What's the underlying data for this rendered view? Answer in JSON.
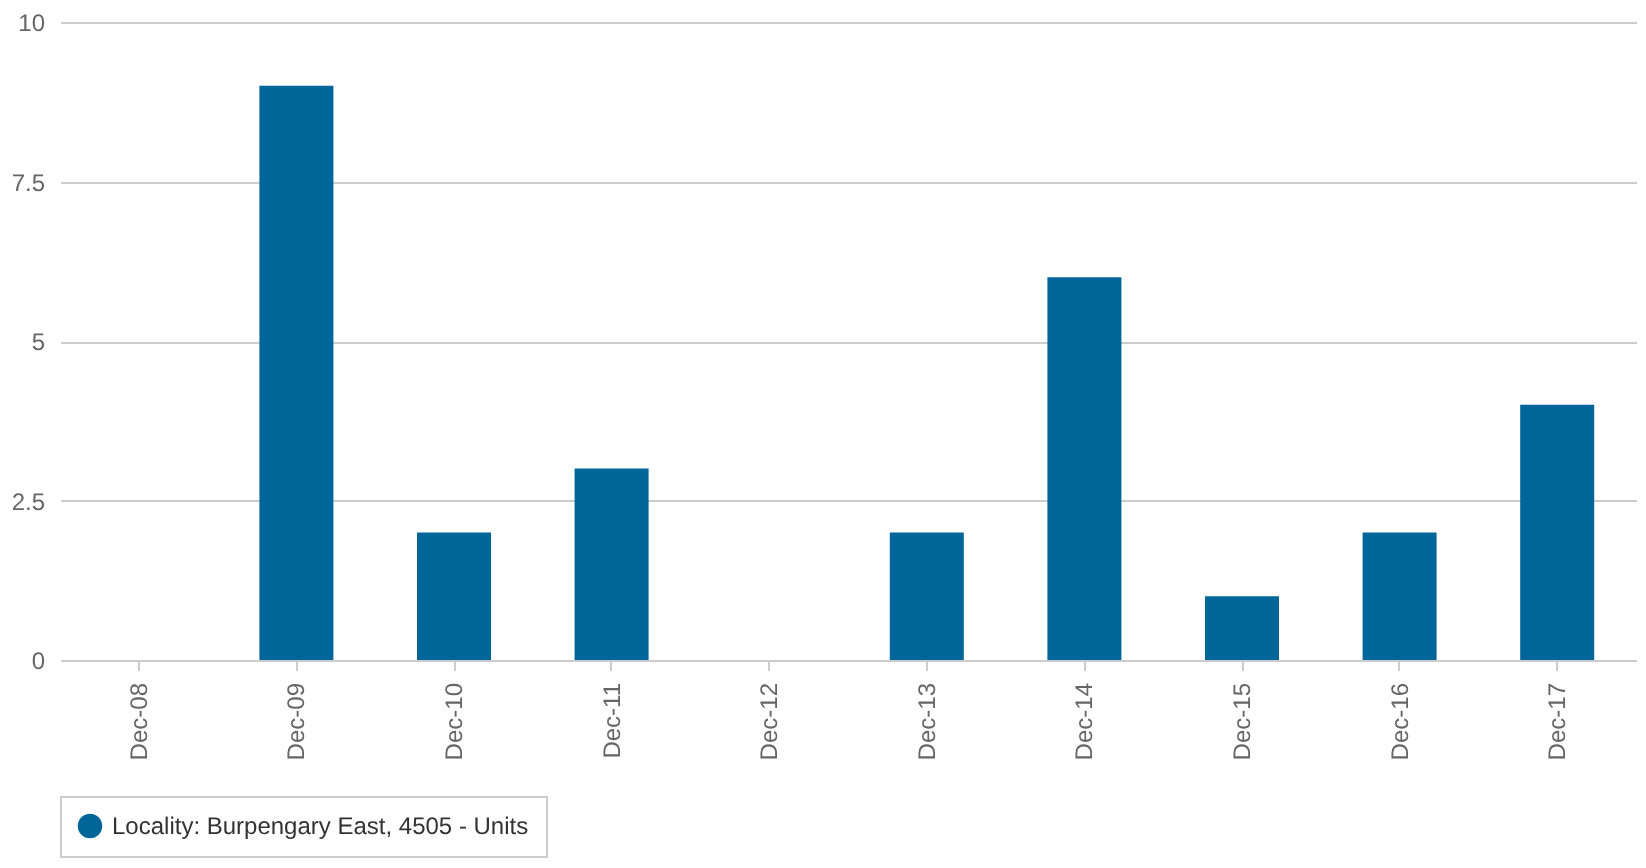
{
  "chart_data": {
    "type": "bar",
    "categories": [
      "Dec-08",
      "Dec-09",
      "Dec-10",
      "Dec-11",
      "Dec-12",
      "Dec-13",
      "Dec-14",
      "Dec-15",
      "Dec-16",
      "Dec-17"
    ],
    "series": [
      {
        "name": "Locality: Burpengary East, 4505 - Units",
        "color": "#006699",
        "values": [
          0,
          9,
          2,
          3,
          0,
          2,
          6,
          1,
          2,
          4
        ]
      }
    ],
    "ylim": [
      0,
      10
    ],
    "yticks": [
      0,
      2.5,
      5,
      7.5,
      10
    ],
    "grid": "y",
    "legend": "bottom"
  }
}
